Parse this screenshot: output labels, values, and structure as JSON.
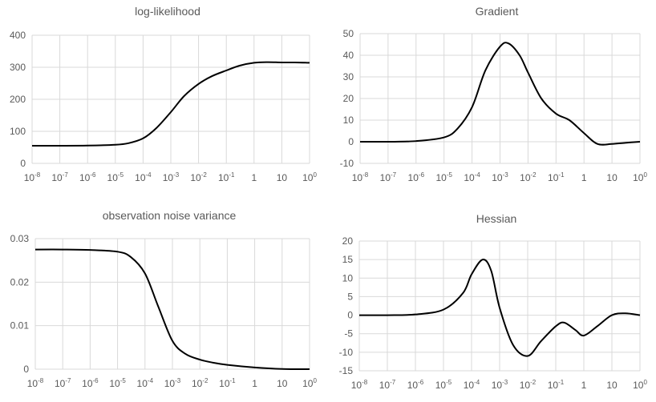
{
  "chart_data": [
    {
      "type": "line",
      "title": "log-likelihood",
      "x_scale": "log",
      "xlim": [
        1e-08,
        100
      ],
      "x_tick_labels": [
        "10-8",
        "10-7",
        "10-6",
        "10-5",
        "10-4",
        "10-3",
        "10-2",
        "10-1",
        "1",
        "10",
        "100"
      ],
      "ylim": [
        0,
        400
      ],
      "y_ticks": [
        "0",
        "100",
        "200",
        "300",
        "400"
      ],
      "grid": true,
      "series": [
        {
          "x": [
            1e-08,
            1e-07,
            1e-06,
            1e-05,
            3e-05,
            0.0001,
            0.0003,
            0.001,
            0.003,
            0.01,
            0.03,
            0.1,
            0.3,
            1,
            3,
            10,
            30,
            100
          ],
          "values": [
            55,
            55,
            55.5,
            58,
            63,
            78,
            110,
            160,
            210,
            248,
            272,
            290,
            305,
            314,
            316,
            315,
            315,
            314
          ]
        }
      ]
    },
    {
      "type": "line",
      "title": "Gradient",
      "x_scale": "log",
      "xlim": [
        1e-08,
        100
      ],
      "x_tick_labels": [
        "10-8",
        "10-7",
        "10-6",
        "10-5",
        "10-4",
        "10-3",
        "10-2",
        "10-1",
        "1",
        "10",
        "100"
      ],
      "ylim": [
        -10,
        50
      ],
      "y_ticks": [
        "-10",
        "0",
        "10",
        "20",
        "30",
        "40",
        "50"
      ],
      "grid": true,
      "series": [
        {
          "x": [
            1e-08,
            1e-07,
            1e-06,
            1e-05,
            3e-05,
            0.0001,
            0.0003,
            0.001,
            0.002,
            0.005,
            0.01,
            0.03,
            0.1,
            0.3,
            1,
            3,
            10,
            30,
            100
          ],
          "values": [
            0,
            0,
            0.3,
            2,
            6,
            16,
            33,
            44,
            45.5,
            40,
            32,
            20,
            13,
            10,
            4,
            -1,
            -1,
            -0.5,
            0
          ]
        }
      ]
    },
    {
      "type": "line",
      "title": "observation noise variance",
      "x_scale": "log",
      "xlim": [
        1e-08,
        100
      ],
      "x_tick_labels": [
        "10-8",
        "10-7",
        "10-6",
        "10-5",
        "10-4",
        "10-3",
        "10-2",
        "10-1",
        "1",
        "10",
        "100"
      ],
      "ylim": [
        0,
        0.03
      ],
      "y_ticks": [
        "0",
        "0.01",
        "0.02",
        "0.03"
      ],
      "grid": true,
      "series": [
        {
          "x": [
            1e-08,
            1e-07,
            1e-06,
            1e-05,
            3e-05,
            0.0001,
            0.0003,
            0.001,
            0.003,
            0.01,
            0.03,
            0.1,
            1,
            10,
            100
          ],
          "values": [
            0.0275,
            0.0275,
            0.0274,
            0.027,
            0.0258,
            0.022,
            0.0145,
            0.0065,
            0.0035,
            0.0022,
            0.0015,
            0.001,
            0.0004,
            5e-05,
            0
          ]
        }
      ]
    },
    {
      "type": "line",
      "title": "Hessian",
      "x_scale": "log",
      "xlim": [
        1e-08,
        100
      ],
      "x_tick_labels": [
        "10-8",
        "10-7",
        "10-6",
        "10-5",
        "10-4",
        "10-3",
        "10-2",
        "10-1",
        "1",
        "10",
        "100"
      ],
      "ylim": [
        -15,
        20
      ],
      "y_ticks": [
        "-15",
        "-10",
        "-5",
        "0",
        "5",
        "10",
        "15",
        "20"
      ],
      "grid": true,
      "series": [
        {
          "x": [
            1e-08,
            1e-07,
            1e-06,
            1e-05,
            5e-05,
            0.0001,
            0.00025,
            0.0005,
            0.001,
            0.003,
            0.01,
            0.03,
            0.1,
            0.2,
            0.5,
            1,
            3,
            10,
            30,
            100
          ],
          "values": [
            0,
            0,
            0.2,
            1.5,
            6,
            11,
            15,
            12,
            2,
            -8,
            -11,
            -7,
            -3,
            -2,
            -4,
            -5.5,
            -3,
            0,
            0.5,
            0
          ]
        }
      ]
    }
  ]
}
